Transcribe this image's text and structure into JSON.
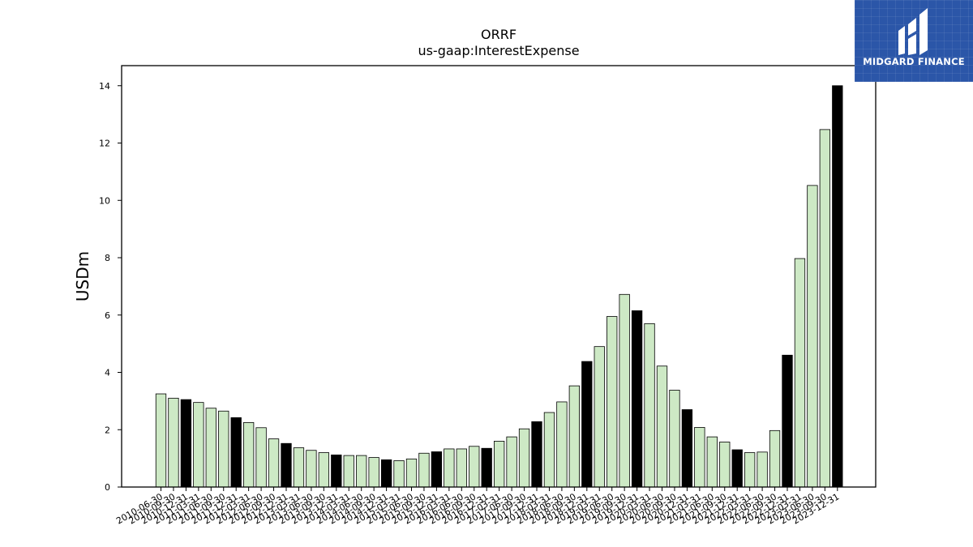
{
  "chart_data": {
    "type": "bar",
    "title": "ORRF",
    "subtitle": "us-gaap:InterestExpense",
    "xlabel": "",
    "ylabel": "USDm",
    "ylim": [
      0,
      14.7
    ],
    "yticks": [
      0,
      2,
      4,
      6,
      8,
      10,
      12,
      14
    ],
    "grid": false,
    "categories": [
      "2010-06-30",
      "2010-09-30",
      "2010-12-31",
      "2011-03-31",
      "2011-06-30",
      "2011-09-30",
      "2011-12-31",
      "2012-03-31",
      "2012-06-30",
      "2012-09-30",
      "2012-12-31",
      "2013-03-31",
      "2013-06-30",
      "2013-09-30",
      "2013-12-31",
      "2014-03-31",
      "2014-06-30",
      "2014-09-30",
      "2014-12-31",
      "2015-03-31",
      "2015-06-30",
      "2015-09-30",
      "2015-12-31",
      "2016-03-31",
      "2016-06-30",
      "2016-09-30",
      "2016-12-31",
      "2017-03-31",
      "2017-06-30",
      "2017-09-30",
      "2017-12-31",
      "2018-03-31",
      "2018-06-30",
      "2018-09-30",
      "2018-12-31",
      "2019-03-31",
      "2019-06-30",
      "2019-09-30",
      "2019-12-31",
      "2020-03-31",
      "2020-06-30",
      "2020-09-30",
      "2020-12-31",
      "2021-03-31",
      "2021-06-30",
      "2021-09-30",
      "2021-12-31",
      "2022-03-31",
      "2022-06-30",
      "2022-09-30",
      "2022-12-31",
      "2023-03-31",
      "2023-06-30",
      "2023-09-30",
      "2023-12-31"
    ],
    "values": [
      3.25,
      3.1,
      3.05,
      2.95,
      2.75,
      2.65,
      2.42,
      2.25,
      2.07,
      1.68,
      1.52,
      1.37,
      1.28,
      1.2,
      1.12,
      1.1,
      1.1,
      1.03,
      0.95,
      0.92,
      0.98,
      1.18,
      1.23,
      1.33,
      1.33,
      1.42,
      1.35,
      1.6,
      1.75,
      2.03,
      2.28,
      2.6,
      2.97,
      3.53,
      4.38,
      4.9,
      5.95,
      6.72,
      6.15,
      5.7,
      4.22,
      3.38,
      2.7,
      2.08,
      1.75,
      1.57,
      1.3,
      1.2,
      1.22,
      1.97,
      4.6,
      7.97,
      10.52,
      12.47,
      14.0
    ],
    "highlight": [
      false,
      false,
      true,
      false,
      false,
      false,
      true,
      false,
      false,
      false,
      true,
      false,
      false,
      false,
      true,
      false,
      false,
      false,
      true,
      false,
      false,
      false,
      true,
      false,
      false,
      false,
      true,
      false,
      false,
      false,
      true,
      false,
      false,
      false,
      true,
      false,
      false,
      false,
      true,
      false,
      false,
      false,
      true,
      false,
      false,
      false,
      true,
      false,
      false,
      false,
      true,
      false,
      false,
      false,
      true
    ],
    "colors": {
      "bar": "#cde9c5",
      "highlight": "#000000",
      "edge": "#000000"
    }
  },
  "logo": {
    "text": "MIDGARD FINANCE",
    "background": "#2b56a8"
  }
}
